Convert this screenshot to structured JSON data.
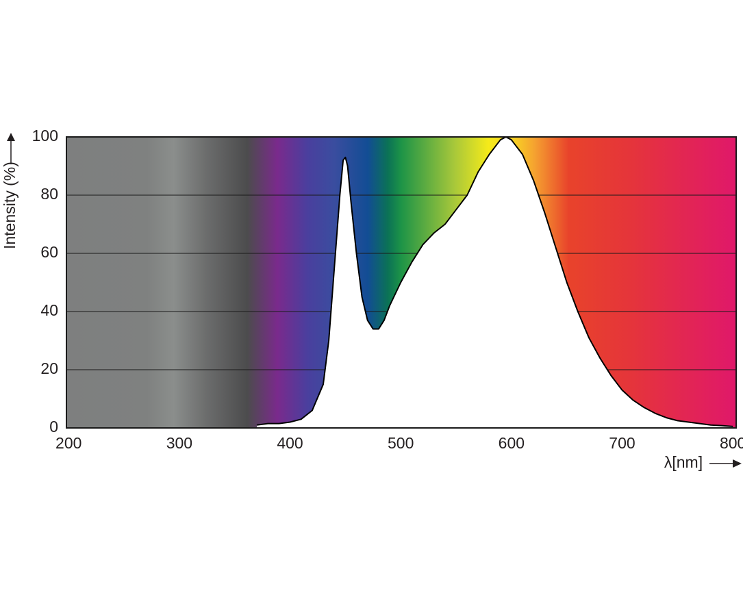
{
  "chart_data": {
    "type": "line",
    "y_label": "Intensity (%)",
    "x_label": "λ[nm]",
    "x": [
      370,
      380,
      390,
      400,
      410,
      420,
      430,
      435,
      440,
      445,
      448,
      450,
      452,
      455,
      460,
      465,
      470,
      475,
      480,
      485,
      490,
      500,
      510,
      520,
      530,
      540,
      550,
      560,
      570,
      580,
      590,
      595,
      600,
      610,
      620,
      630,
      640,
      650,
      660,
      670,
      680,
      690,
      700,
      710,
      720,
      730,
      740,
      750,
      760,
      770,
      780,
      790,
      800
    ],
    "values": [
      1,
      1.5,
      1.5,
      2,
      3,
      6,
      15,
      30,
      55,
      80,
      92,
      93,
      90,
      78,
      60,
      45,
      37,
      34,
      34,
      37,
      42,
      50,
      57,
      63,
      67,
      70,
      75,
      80,
      88,
      94,
      99,
      100,
      99,
      94,
      85,
      74,
      62,
      50,
      40,
      31,
      24,
      18,
      13,
      9.5,
      7,
      5,
      3.5,
      2.5,
      2,
      1.5,
      1,
      0.8,
      0.5
    ],
    "color": "#000000",
    "xlim": [
      198,
      803
    ],
    "xticks": [
      200,
      300,
      400,
      500,
      600,
      700,
      800
    ],
    "ylim": [
      0,
      100
    ],
    "yticks": [
      0,
      20,
      40,
      60,
      80,
      100
    ],
    "grid": true
  }
}
